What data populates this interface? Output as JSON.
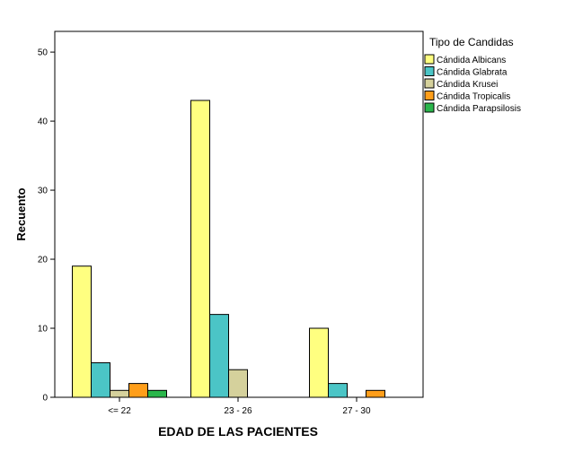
{
  "chart_data": {
    "type": "bar",
    "xlabel": "EDAD DE LAS PACIENTES",
    "ylabel": "Recuento",
    "ylim": [
      0,
      53
    ],
    "yticks": [
      "0",
      "10",
      "20",
      "30",
      "40",
      "50"
    ],
    "categories": [
      "<= 22",
      "23 - 26",
      "27 - 30"
    ],
    "legend_title": "Tipo de Candidas",
    "legend_position": "right",
    "grid": false,
    "series": [
      {
        "name": "Cándida Albicans",
        "color": "#ffff80",
        "values": [
          19,
          43,
          10
        ]
      },
      {
        "name": "Cándida Glabrata",
        "color": "#4bc5c6",
        "values": [
          5,
          12,
          2
        ]
      },
      {
        "name": "Cándida Krusei",
        "color": "#d5d19c",
        "values": [
          1,
          4,
          0
        ]
      },
      {
        "name": "Cándida Tropicalis",
        "color": "#ff9e1a",
        "values": [
          2,
          0,
          1
        ]
      },
      {
        "name": "Cándida Parapsilosis",
        "color": "#2ab64b",
        "values": [
          1,
          0,
          0
        ]
      }
    ]
  }
}
